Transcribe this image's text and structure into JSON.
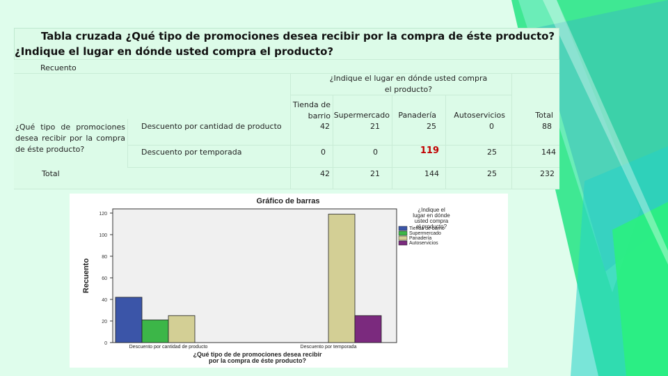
{
  "table": {
    "title_line1": "Tabla cruzada ¿Qué tipo de promociones desea recibir por la compra de éste producto?",
    "title_line2": "¿Indique el lugar en dónde usted compra el producto?",
    "count_label": "Recuento",
    "col_group_header": "¿Indique el lugar en dónde usted compra el producto?",
    "columns": [
      "Tienda de barrio",
      "Supermercado",
      "Panadería",
      "Autoservicios",
      "Total"
    ],
    "row_group_label": "¿Qué tipo de promociones desea recibir por la compra de éste producto?",
    "rows": [
      {
        "label": "Descuento por cantidad de producto",
        "values": [
          "42",
          "21",
          "25",
          "0",
          "88"
        ]
      },
      {
        "label": "Descuento por temporada",
        "values": [
          "0",
          "0",
          "119",
          "25",
          "144"
        ]
      }
    ],
    "total_row": {
      "label": "Total",
      "values": [
        "42",
        "21",
        "144",
        "25",
        "232"
      ]
    }
  },
  "chart_data": {
    "type": "bar",
    "title": "Gráfico de barras",
    "categories": [
      "Descuento por cantidad de producto",
      "Descuento por temporada"
    ],
    "series": [
      {
        "name": "Tienda de barrio",
        "values": [
          42,
          0
        ],
        "color": "#3b55a8"
      },
      {
        "name": "Supermercado",
        "values": [
          21,
          0
        ],
        "color": "#3cb648"
      },
      {
        "name": "Panadería",
        "values": [
          25,
          119
        ],
        "color": "#d3cf95"
      },
      {
        "name": "Autoservicios",
        "values": [
          0,
          25
        ],
        "color": "#7b2a7e"
      }
    ],
    "xlabel": "¿Qué tipo de de promociones desea recibir por la compra de éste producto?",
    "ylabel": "Recuento",
    "legend_title": "¿Indique el lugar en dónde usted compra el producto?",
    "legend_position": "top-right",
    "yticks": [
      0,
      20,
      40,
      60,
      80,
      100,
      120
    ],
    "ylim": [
      0,
      120
    ],
    "grid": false
  }
}
